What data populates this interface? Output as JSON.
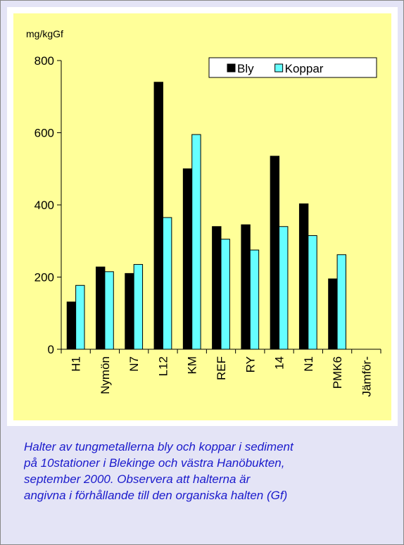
{
  "chart_data": {
    "type": "bar",
    "y_label": "mg/kgGf",
    "categories": [
      "H1",
      "Nymön",
      "N7",
      "L12",
      "KM",
      "REF",
      "RY",
      "14",
      "N1",
      "PMK6",
      "Jämför-"
    ],
    "series": [
      {
        "name": "Bly",
        "color": "#000000",
        "values": [
          131,
          228,
          210,
          740,
          500,
          340,
          345,
          535,
          403,
          195,
          null
        ]
      },
      {
        "name": "Koppar",
        "color": "#66ffff",
        "values": [
          177,
          215,
          235,
          365,
          595,
          305,
          275,
          340,
          315,
          262,
          null
        ]
      }
    ],
    "ylim": [
      0,
      800
    ],
    "yticks": [
      0,
      200,
      400,
      600,
      800
    ],
    "legend": "upper right",
    "caption": [
      "Halter av tungmetallerna bly och koppar i sediment",
      "på 10stationer i Blekinge och västra Hanöbukten,",
      "september 2000. Observera att halterna är",
      "angivna i förhållande till den organiska halten (Gf)"
    ]
  }
}
